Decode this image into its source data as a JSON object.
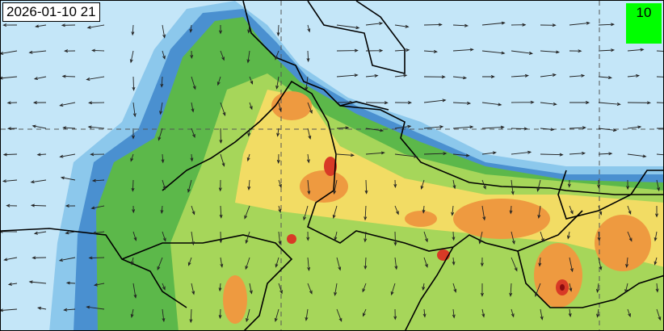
{
  "timestamp": "2026-01-10 21",
  "wind_reference": {
    "label": "10"
  },
  "colors": {
    "sea": "#c4e6f8",
    "light_blue": "#8cc8ec",
    "blue": "#4a90d0",
    "green": "#5cb84a",
    "light_green": "#a6d65a",
    "yellow": "#f2dc64",
    "orange": "#ee9a40",
    "red": "#d83a26",
    "dark_red": "#8a0c10",
    "reference_box": "#00ff00"
  }
}
